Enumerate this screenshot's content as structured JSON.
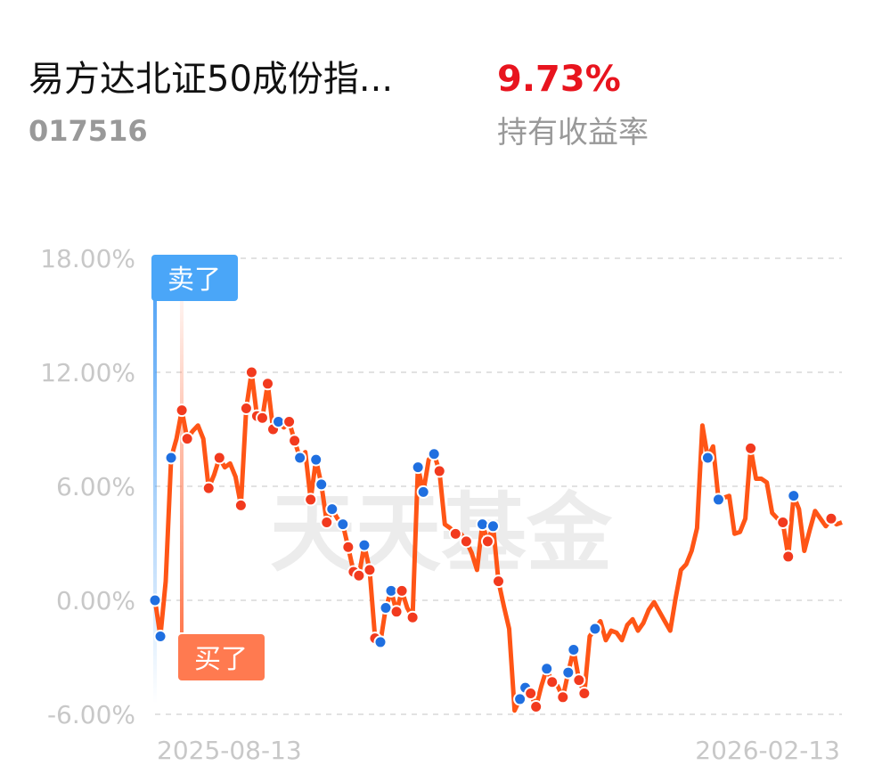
{
  "header": {
    "title": "易方达北证50成份指...",
    "code": "017516",
    "rate": "9.73%",
    "rate_label": "持有收益率"
  },
  "watermark": "天天基金",
  "sell_tag": "卖了",
  "buy_tag": "买了",
  "chart_data": {
    "type": "line",
    "categories": [
      "2025-08-13",
      null,
      null,
      null,
      null,
      null,
      null,
      null,
      null,
      null,
      null,
      null,
      null,
      null,
      null,
      null,
      null,
      null,
      null,
      null,
      null,
      null,
      null,
      null,
      null,
      null,
      null,
      null,
      null,
      null,
      null,
      null,
      null,
      null,
      null,
      null,
      null,
      null,
      null,
      null,
      null,
      null,
      null,
      null,
      null,
      null,
      null,
      null,
      null,
      null,
      null,
      null,
      null,
      null,
      null,
      null,
      null,
      null,
      null,
      null,
      null,
      null,
      null,
      null,
      null,
      null,
      null,
      null,
      null,
      null,
      null,
      null,
      null,
      null,
      null,
      null,
      null,
      null,
      null,
      null,
      null,
      null,
      null,
      null,
      null,
      null,
      null,
      null,
      null,
      null,
      null,
      null,
      null,
      null,
      null,
      null,
      null,
      null,
      null,
      null,
      null,
      null,
      null,
      null,
      null,
      null,
      null,
      null,
      null,
      null,
      null,
      null,
      null,
      null,
      null,
      null,
      null,
      null,
      null,
      null,
      null,
      null,
      null,
      null,
      null,
      null,
      null,
      null,
      "2026-02-13"
    ],
    "series": [
      {
        "color": "#ff5516",
        "values": [
          0,
          -1.9,
          1.0,
          7.5,
          8.5,
          10.0,
          8.5,
          8.9,
          9.2,
          8.5,
          5.9,
          6.6,
          7.5,
          7.0,
          7.2,
          6.5,
          5.0,
          10.1,
          12.0,
          9.7,
          9.6,
          11.4,
          9.0,
          9.4,
          9.1,
          9.4,
          8.4,
          7.5,
          7.8,
          5.3,
          7.4,
          6.1,
          4.1,
          4.8,
          4.3,
          4.0,
          2.8,
          1.5,
          1.3,
          2.9,
          1.6,
          -2.0,
          -2.2,
          -0.4,
          0.5,
          -0.6,
          0.5,
          -0.4,
          -0.9,
          7.0,
          5.7,
          7.4,
          7.7,
          6.8,
          4.0,
          3.8,
          3.5,
          3.5,
          3.1,
          2.5,
          1.6,
          4.0,
          3.1,
          3.9,
          1.0,
          -0.3,
          -1.5,
          -5.8,
          -5.2,
          -4.6,
          -4.9,
          -5.6,
          -4.5,
          -3.6,
          -4.3,
          -4.5,
          -5.1,
          -3.8,
          -2.6,
          -4.2,
          -4.9,
          -1.9,
          -1.5,
          -1.1,
          -2.1,
          -1.6,
          -1.7,
          -2.1,
          -1.3,
          -1.0,
          -1.6,
          -1.2,
          -0.5,
          -0.1,
          -0.6,
          -1.1,
          -1.6,
          0.1,
          1.6,
          1.9,
          2.6,
          3.8,
          9.2,
          7.5,
          8.1,
          5.3,
          5.4,
          5.5,
          3.5,
          3.6,
          4.3,
          8.0,
          6.4,
          6.4,
          6.2,
          4.6,
          4.3,
          4.1,
          2.3,
          5.5,
          4.8,
          2.6,
          3.7,
          4.7,
          4.3,
          3.9,
          4.3,
          4.0,
          4.1
        ],
        "markers": [
          "sell",
          "sell",
          null,
          "sell",
          null,
          "buy",
          "buy",
          null,
          null,
          null,
          "buy",
          null,
          "buy",
          null,
          null,
          null,
          "buy",
          "buy",
          "buy",
          "buy",
          "buy",
          "buy",
          "buy",
          "sell",
          null,
          "buy",
          "buy",
          "sell",
          null,
          "buy",
          "sell",
          "sell",
          "buy",
          "sell",
          null,
          "sell",
          "buy",
          "buy",
          "buy",
          "sell",
          "buy",
          "buy",
          "sell",
          "sell",
          "sell",
          "buy",
          "buy",
          null,
          "buy",
          "sell",
          "sell",
          null,
          "sell",
          "buy",
          null,
          null,
          "buy",
          null,
          "buy",
          null,
          null,
          "sell",
          "buy",
          "sell",
          "buy",
          null,
          null,
          null,
          "sell",
          "sell",
          "buy",
          "buy",
          null,
          "sell",
          "buy",
          null,
          "buy",
          "sell",
          "sell",
          "buy",
          "buy",
          null,
          "sell",
          null,
          null,
          null,
          null,
          null,
          null,
          null,
          null,
          null,
          null,
          null,
          null,
          null,
          null,
          null,
          null,
          null,
          null,
          null,
          null,
          "sell",
          null,
          "sell",
          null,
          null,
          null,
          null,
          null,
          "buy",
          null,
          null,
          null,
          null,
          null,
          "buy",
          "buy",
          "sell",
          null,
          null,
          null,
          null,
          null,
          null,
          "buy",
          null,
          null
        ]
      }
    ],
    "marker_colors": {
      "sell": "#1f6fe0",
      "buy": "#f23a1e"
    },
    "ylim": [
      -6,
      18
    ],
    "yticks": [
      {
        "value": -6,
        "label": "-6.00%"
      },
      {
        "value": 0,
        "label": "0.00%"
      },
      {
        "value": 6,
        "label": "6.00%"
      },
      {
        "value": 12,
        "label": "12.00%"
      },
      {
        "value": 18,
        "label": "18.00%"
      }
    ],
    "grid": true
  }
}
